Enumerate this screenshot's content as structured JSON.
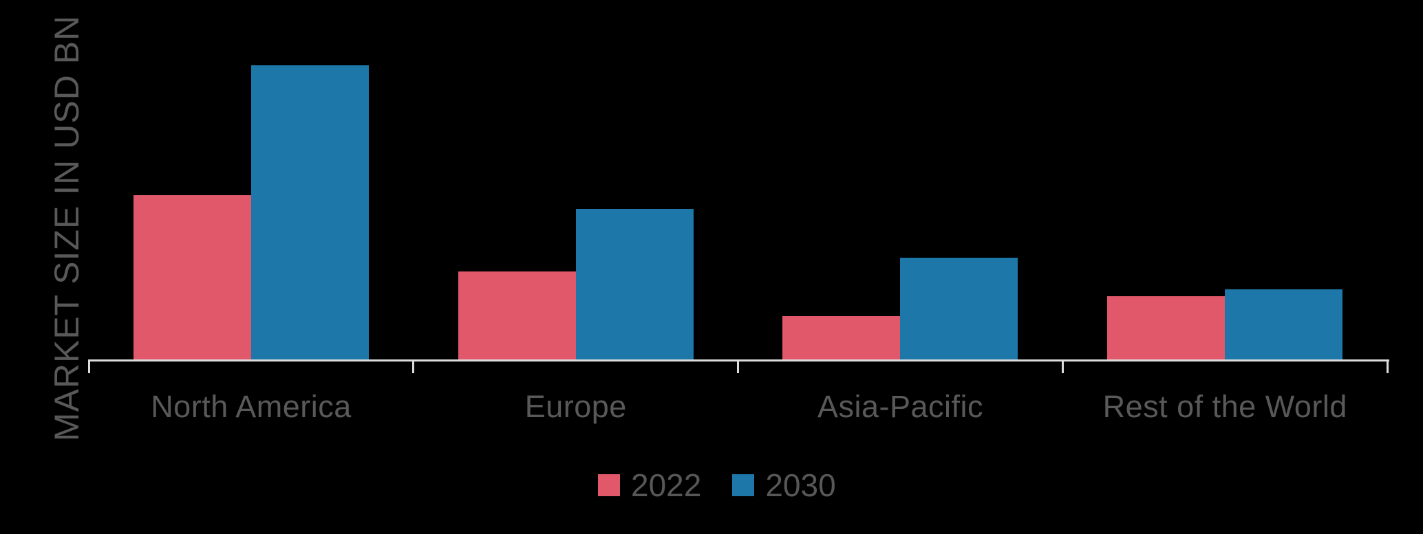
{
  "chart_data": {
    "type": "bar",
    "title": "",
    "xlabel": "",
    "ylabel": "MARKET SIZE IN USD BN",
    "categories": [
      "North America",
      "Europe",
      "Asia-Pacific",
      "Rest of the World"
    ],
    "series": [
      {
        "name": "2022",
        "color": "#e0586a",
        "values": [
          23.9,
          12.8,
          6.3,
          9.2
        ]
      },
      {
        "name": "2030",
        "color": "#1d77a9",
        "values": [
          42.8,
          21.9,
          14.8,
          10.2
        ]
      }
    ],
    "ylim": [
      0,
      45
    ],
    "value_note": "no numeric axis shown; values estimated from relative bar heights",
    "grid": false,
    "legend_position": "bottom",
    "axis_color": "#dcdcdc",
    "label_color": "#595959",
    "background": "#000000"
  }
}
